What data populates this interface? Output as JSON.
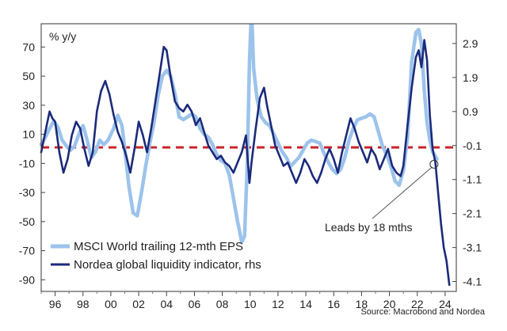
{
  "chart_data": {
    "type": "line",
    "title": "",
    "unit_label": "% y/y",
    "xlabel": "",
    "ylabel": "",
    "x_ticks": [
      "96",
      "98",
      "00",
      "02",
      "04",
      "06",
      "08",
      "10",
      "12",
      "14",
      "16",
      "18",
      "20",
      "22",
      "24"
    ],
    "x_range": [
      1995,
      2024.8
    ],
    "y_left": {
      "range": [
        -98,
        86
      ],
      "ticks": [
        70,
        50,
        30,
        10,
        -10,
        -30,
        -50,
        -70,
        -90
      ]
    },
    "y_right": {
      "range": [
        -4.39,
        3.48
      ],
      "ticks": [
        2.9,
        1.9,
        0.9,
        -0.1,
        -1.1,
        -2.1,
        -3.1,
        -4.1
      ],
      "tick_labels": [
        "2.9",
        "1.9",
        "0.9",
        "-0.1",
        "-1.1",
        "-2.1",
        "-3.1",
        "-4.1"
      ]
    },
    "reference_line": {
      "axis": "left",
      "value": 1,
      "color": "#c8262c"
    },
    "series": [
      {
        "name": "MSCI World trailing 12-mth EPS",
        "axis": "left",
        "color": "#9cc3eb",
        "points": [
          [
            1995.0,
            3
          ],
          [
            1995.3,
            8
          ],
          [
            1995.6,
            14
          ],
          [
            1995.9,
            19
          ],
          [
            1996.2,
            15
          ],
          [
            1996.5,
            6
          ],
          [
            1996.8,
            2
          ],
          [
            1997.1,
            -1
          ],
          [
            1997.4,
            2
          ],
          [
            1997.7,
            10
          ],
          [
            1998.0,
            16
          ],
          [
            1998.3,
            6
          ],
          [
            1998.6,
            -6
          ],
          [
            1998.9,
            -2
          ],
          [
            1999.2,
            6
          ],
          [
            1999.5,
            3
          ],
          [
            1999.8,
            6
          ],
          [
            2000.2,
            14
          ],
          [
            2000.5,
            23
          ],
          [
            2000.8,
            16
          ],
          [
            2001.0,
            0
          ],
          [
            2001.3,
            -26
          ],
          [
            2001.6,
            -44
          ],
          [
            2001.9,
            -46
          ],
          [
            2002.2,
            -30
          ],
          [
            2002.5,
            -12
          ],
          [
            2002.8,
            4
          ],
          [
            2003.1,
            18
          ],
          [
            2003.4,
            37
          ],
          [
            2003.7,
            50
          ],
          [
            2004.0,
            54
          ],
          [
            2004.3,
            50
          ],
          [
            2004.6,
            38
          ],
          [
            2004.9,
            22
          ],
          [
            2005.2,
            20
          ],
          [
            2005.5,
            22
          ],
          [
            2005.8,
            24
          ],
          [
            2006.1,
            22
          ],
          [
            2006.4,
            14
          ],
          [
            2006.7,
            10
          ],
          [
            2007.0,
            8
          ],
          [
            2007.3,
            3
          ],
          [
            2007.6,
            -4
          ],
          [
            2007.9,
            -8
          ],
          [
            2008.2,
            -10
          ],
          [
            2008.5,
            -18
          ],
          [
            2008.8,
            -34
          ],
          [
            2009.1,
            -50
          ],
          [
            2009.4,
            -64
          ],
          [
            2009.6,
            -60
          ],
          [
            2009.8,
            -10
          ],
          [
            2009.95,
            60
          ],
          [
            2010.1,
            96
          ],
          [
            2010.25,
            55
          ],
          [
            2010.5,
            34
          ],
          [
            2010.8,
            22
          ],
          [
            2011.1,
            18
          ],
          [
            2011.4,
            16
          ],
          [
            2011.7,
            10
          ],
          [
            2012.0,
            4
          ],
          [
            2012.3,
            -2
          ],
          [
            2012.6,
            -6
          ],
          [
            2012.9,
            -12
          ],
          [
            2013.2,
            -9
          ],
          [
            2013.5,
            -6
          ],
          [
            2013.8,
            -1
          ],
          [
            2014.1,
            4
          ],
          [
            2014.4,
            6
          ],
          [
            2014.7,
            5
          ],
          [
            2015.0,
            4
          ],
          [
            2015.3,
            -3
          ],
          [
            2015.6,
            -9
          ],
          [
            2015.9,
            -14
          ],
          [
            2016.2,
            -17
          ],
          [
            2016.5,
            -14
          ],
          [
            2016.8,
            -6
          ],
          [
            2017.1,
            6
          ],
          [
            2017.4,
            14
          ],
          [
            2017.7,
            20
          ],
          [
            2018.0,
            21
          ],
          [
            2018.3,
            22
          ],
          [
            2018.6,
            24
          ],
          [
            2018.9,
            22
          ],
          [
            2019.2,
            12
          ],
          [
            2019.5,
            2
          ],
          [
            2019.8,
            -4
          ],
          [
            2020.1,
            -12
          ],
          [
            2020.4,
            -22
          ],
          [
            2020.7,
            -25
          ],
          [
            2021.0,
            -15
          ],
          [
            2021.3,
            8
          ],
          [
            2021.6,
            60
          ],
          [
            2021.9,
            80
          ],
          [
            2022.1,
            82
          ],
          [
            2022.3,
            72
          ],
          [
            2022.5,
            40
          ],
          [
            2022.7,
            18
          ],
          [
            2022.9,
            6
          ],
          [
            2023.1,
            -2
          ],
          [
            2023.4,
            -7
          ]
        ]
      },
      {
        "name": "Nordea global liquidity indicator, rhs",
        "axis": "right",
        "color": "#1c2a7a",
        "points": [
          [
            1995.0,
            -0.3
          ],
          [
            1995.2,
            0.1
          ],
          [
            1995.4,
            0.5
          ],
          [
            1995.6,
            0.9
          ],
          [
            1995.8,
            0.7
          ],
          [
            1996.0,
            0.6
          ],
          [
            1996.3,
            -0.3
          ],
          [
            1996.6,
            -0.9
          ],
          [
            1996.9,
            -0.5
          ],
          [
            1997.2,
            0.2
          ],
          [
            1997.5,
            0.6
          ],
          [
            1997.8,
            0.4
          ],
          [
            1998.1,
            -0.2
          ],
          [
            1998.4,
            -0.7
          ],
          [
            1998.7,
            -0.3
          ],
          [
            1999.0,
            0.9
          ],
          [
            1999.3,
            1.5
          ],
          [
            1999.6,
            1.8
          ],
          [
            1999.9,
            1.4
          ],
          [
            2000.2,
            0.8
          ],
          [
            2000.5,
            0.3
          ],
          [
            2000.8,
            0.0
          ],
          [
            2001.1,
            -0.4
          ],
          [
            2001.4,
            -0.9
          ],
          [
            2001.7,
            -0.2
          ],
          [
            2002.0,
            0.6
          ],
          [
            2002.3,
            0.2
          ],
          [
            2002.6,
            -0.3
          ],
          [
            2002.9,
            0.4
          ],
          [
            2003.2,
            1.2
          ],
          [
            2003.5,
            2.0
          ],
          [
            2003.8,
            2.8
          ],
          [
            2004.0,
            2.7
          ],
          [
            2004.3,
            1.9
          ],
          [
            2004.6,
            1.2
          ],
          [
            2004.9,
            1.0
          ],
          [
            2005.2,
            0.9
          ],
          [
            2005.5,
            1.1
          ],
          [
            2005.8,
            0.9
          ],
          [
            2006.1,
            0.5
          ],
          [
            2006.4,
            0.7
          ],
          [
            2006.7,
            0.3
          ],
          [
            2007.0,
            -0.1
          ],
          [
            2007.3,
            -0.3
          ],
          [
            2007.6,
            -0.5
          ],
          [
            2007.9,
            -0.4
          ],
          [
            2008.2,
            -0.6
          ],
          [
            2008.5,
            -0.7
          ],
          [
            2008.8,
            -0.9
          ],
          [
            2009.1,
            -0.6
          ],
          [
            2009.4,
            -0.3
          ],
          [
            2009.7,
            0.2
          ],
          [
            2009.95,
            -1.2
          ],
          [
            2010.1,
            -0.6
          ],
          [
            2010.4,
            0.4
          ],
          [
            2010.7,
            1.3
          ],
          [
            2011.0,
            1.6
          ],
          [
            2011.2,
            1.1
          ],
          [
            2011.5,
            0.5
          ],
          [
            2011.8,
            -0.1
          ],
          [
            2012.1,
            -0.4
          ],
          [
            2012.4,
            -0.7
          ],
          [
            2012.7,
            -0.6
          ],
          [
            2013.0,
            -0.9
          ],
          [
            2013.3,
            -1.2
          ],
          [
            2013.6,
            -0.9
          ],
          [
            2013.9,
            -0.5
          ],
          [
            2014.2,
            -0.7
          ],
          [
            2014.5,
            -1.0
          ],
          [
            2014.8,
            -1.2
          ],
          [
            2015.1,
            -0.9
          ],
          [
            2015.4,
            -0.5
          ],
          [
            2015.7,
            -0.2
          ],
          [
            2016.0,
            -0.5
          ],
          [
            2016.3,
            -0.9
          ],
          [
            2016.6,
            -0.3
          ],
          [
            2016.9,
            0.2
          ],
          [
            2017.2,
            0.7
          ],
          [
            2017.5,
            0.4
          ],
          [
            2017.8,
            0.0
          ],
          [
            2018.1,
            -0.3
          ],
          [
            2018.4,
            -0.6
          ],
          [
            2018.7,
            -0.2
          ],
          [
            2019.0,
            -0.4
          ],
          [
            2019.3,
            -0.8
          ],
          [
            2019.6,
            -0.5
          ],
          [
            2019.9,
            -0.2
          ],
          [
            2020.2,
            -0.7
          ],
          [
            2020.5,
            -0.9
          ],
          [
            2020.8,
            -1.0
          ],
          [
            2021.0,
            -0.7
          ],
          [
            2021.3,
            0.5
          ],
          [
            2021.6,
            1.6
          ],
          [
            2021.9,
            2.5
          ],
          [
            2022.1,
            2.7
          ],
          [
            2022.3,
            2.2
          ],
          [
            2022.5,
            3.0
          ],
          [
            2022.7,
            2.4
          ],
          [
            2022.9,
            0.8
          ],
          [
            2023.1,
            -0.2
          ],
          [
            2023.3,
            -0.6
          ],
          [
            2023.5,
            -1.5
          ],
          [
            2023.7,
            -2.4
          ],
          [
            2023.9,
            -3.1
          ],
          [
            2024.1,
            -3.5
          ],
          [
            2024.3,
            -4.2
          ]
        ]
      }
    ],
    "annotation": {
      "text": "Leads by 18 mths",
      "marker": [
        2023.2,
        -0.65
      ]
    },
    "legend": {
      "position": "bottom-left"
    },
    "source": "Source: Macrobond and Nordea",
    "grid": false
  }
}
